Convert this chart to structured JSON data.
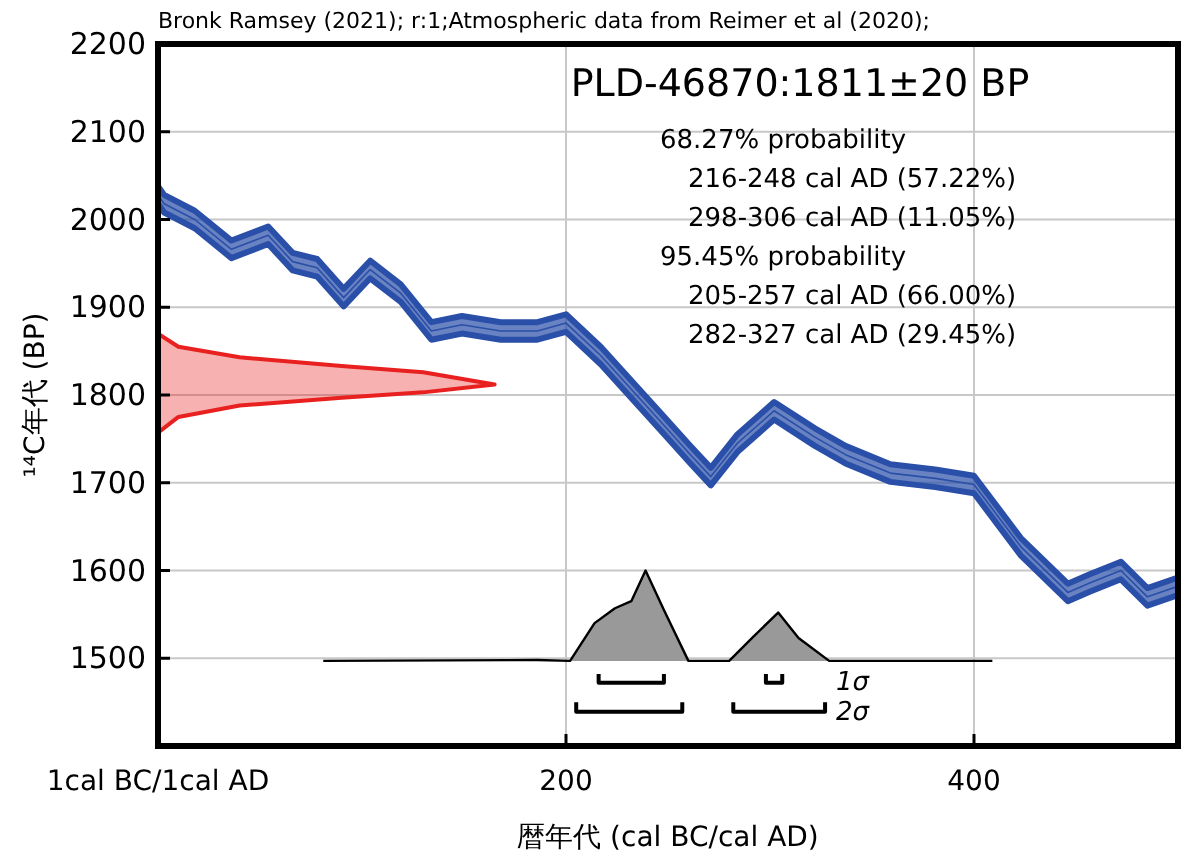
{
  "chart_data": {
    "type": "line",
    "title": "PLD-46870:1811±20 BP",
    "subtitle": "Bronk Ramsey (2021); r:1;Atmospheric data from Reimer et al (2020);",
    "xlabel": "暦年代 (cal BC/cal AD)",
    "ylabel": "¹⁴C年代 (BP)",
    "annotations": [
      "68.27% probability",
      "  216-248 cal AD (57.22%)",
      "  298-306 cal AD (11.05%)",
      "95.45% probability",
      "  205-257 cal AD (66.00%)",
      "  282-327 cal AD (29.45%)",
      "1σ",
      "2σ"
    ],
    "xlim": [
      0,
      500
    ],
    "xticks": [
      {
        "value": 0,
        "label": "1cal BC/1cal AD"
      },
      200,
      400
    ],
    "ylim": [
      1400,
      2200
    ],
    "yticks": [
      1500,
      1600,
      1700,
      1800,
      1900,
      2000,
      2100,
      2200
    ],
    "grid": true,
    "series": [
      {
        "type": "line",
        "color": "#2a4fa8",
        "x": [
          0,
          3,
          18,
          36,
          54,
          66,
          78,
          91,
          104,
          119,
          134,
          149,
          168,
          186,
          200,
          217,
          226,
          247,
          261,
          271,
          284,
          302,
          322,
          337,
          359,
          381,
          400,
          423,
          446,
          457,
          472,
          485,
          500
        ],
        "values": [
          2028,
          2018,
          2000,
          1966,
          1982,
          1952,
          1945,
          1911,
          1943,
          1916,
          1873,
          1880,
          1873,
          1873,
          1882,
          1845,
          1822,
          1768,
          1732,
          1707,
          1745,
          1782,
          1752,
          1732,
          1711,
          1705,
          1698,
          1627,
          1575,
          1586,
          1600,
          1570,
          1582
        ],
        "lower": [
          2018,
          2008,
          1990,
          1956,
          1972,
          1942,
          1935,
          1901,
          1933,
          1906,
          1863,
          1870,
          1863,
          1863,
          1872,
          1835,
          1812,
          1758,
          1722,
          1697,
          1735,
          1772,
          1742,
          1722,
          1701,
          1695,
          1688,
          1617,
          1565,
          1576,
          1590,
          1560,
          1572
        ],
        "upper": [
          2038,
          2028,
          2010,
          1976,
          1992,
          1962,
          1955,
          1921,
          1953,
          1926,
          1883,
          1890,
          1883,
          1883,
          1892,
          1855,
          1832,
          1778,
          1742,
          1717,
          1755,
          1792,
          1762,
          1742,
          1721,
          1715,
          1708,
          1637,
          1585,
          1596,
          1610,
          1580,
          1592
        ]
      },
      {
        "type": "line",
        "color": "#e8201f",
        "x": [
          0,
          10,
          40,
          90,
          130,
          165,
          130,
          90,
          40,
          10,
          0
        ],
        "values": [
          1870,
          1855,
          1843,
          1833,
          1826,
          1812,
          1803,
          1797,
          1788,
          1775,
          1757
        ]
      },
      {
        "type": "area",
        "color": "#999999",
        "x": [
          81,
          186,
          202,
          214,
          224,
          232,
          239,
          248,
          260,
          280,
          292,
          304,
          314,
          329,
          409
        ],
        "values": [
          1497,
          1498,
          1497,
          1540,
          1557,
          1565,
          1600,
          1555,
          1497,
          1497,
          1525,
          1552,
          1523,
          1497,
          1497
        ]
      },
      {
        "color": "#000000",
        "x": [
          216,
          216,
          248,
          248
        ],
        "values": [
          1482,
          1472,
          1472,
          1482
        ]
      },
      {
        "color": "#000000",
        "x": [
          298,
          298,
          306,
          306
        ],
        "values": [
          1482,
          1472,
          1472,
          1482
        ]
      },
      {
        "color": "#000000",
        "x": [
          205,
          205,
          257,
          257
        ],
        "values": [
          1450,
          1439,
          1439,
          1450
        ]
      },
      {
        "color": "#000000",
        "x": [
          282,
          282,
          327,
          327
        ],
        "values": [
          1450,
          1439,
          1439,
          1450
        ]
      }
    ]
  }
}
